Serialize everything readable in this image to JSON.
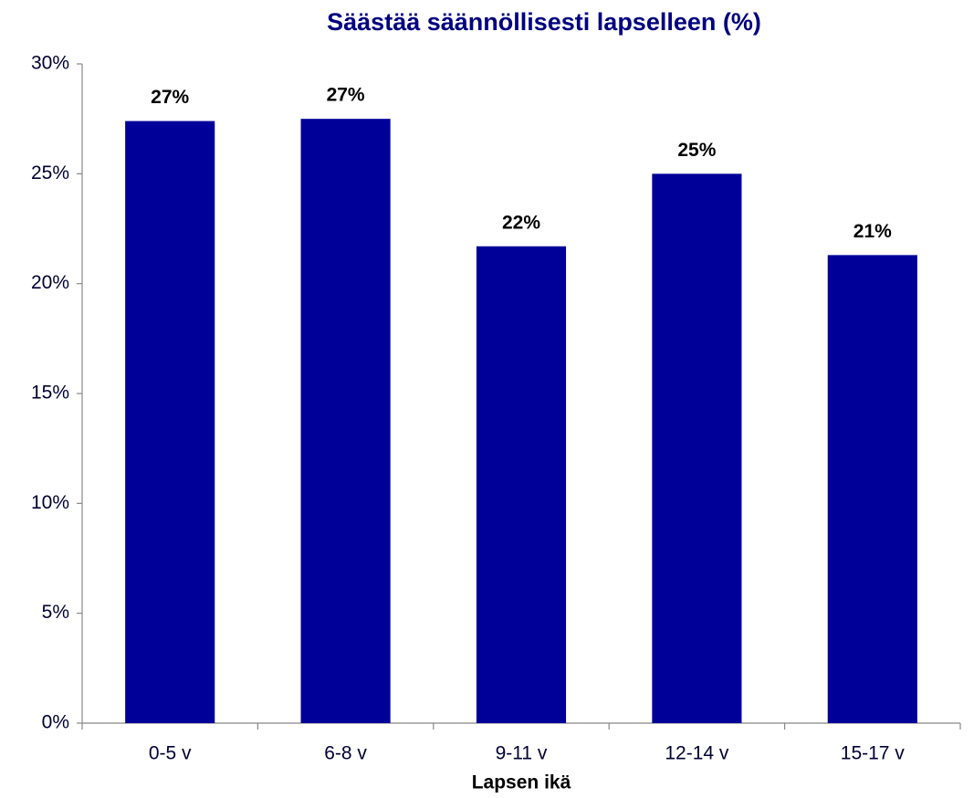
{
  "chart_data": {
    "type": "bar",
    "title": "Säästää säännöllisesti lapselleen (%)",
    "x_label": "Lapsen ikä",
    "categories": [
      "0-5 v",
      "6-8 v",
      "9-11 v",
      "12-14 v",
      "15-17 v"
    ],
    "values": [
      27.4,
      27.5,
      21.7,
      25.0,
      21.3
    ],
    "value_labels": [
      "27%",
      "27%",
      "22%",
      "25%",
      "21%"
    ],
    "color": "#000099",
    "ylim": [
      0,
      30
    ],
    "yticks": [
      {
        "value": 0,
        "label": "0%"
      },
      {
        "value": 5,
        "label": "5%"
      },
      {
        "value": 10,
        "label": "10%"
      },
      {
        "value": 15,
        "label": "15%"
      },
      {
        "value": 20,
        "label": "20%"
      },
      {
        "value": 25,
        "label": "25%"
      },
      {
        "value": 30,
        "label": "30%"
      }
    ],
    "grid": false
  }
}
